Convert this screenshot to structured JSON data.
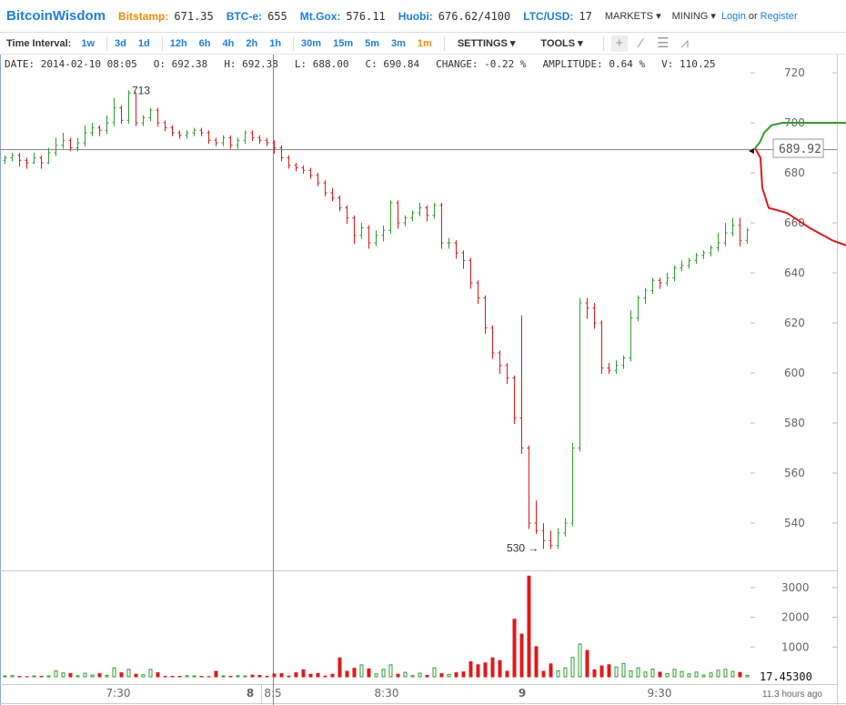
{
  "header": {
    "logo": "BitcoinWisdom",
    "tickers": [
      {
        "label": "Bitstamp:",
        "value": "671.35",
        "color": "#f28c00"
      },
      {
        "label": "BTC-e:",
        "value": "655",
        "color": "#1a7fe0"
      },
      {
        "label": "Mt.Gox:",
        "value": "576.11",
        "color": "#1a7fe0"
      },
      {
        "label": "Huobi:",
        "value": "676.62/4100",
        "color": "#1a7fe0"
      },
      {
        "label": "LTC/USD:",
        "value": "17",
        "color": "#1a7fe0"
      }
    ],
    "markets": "MARKETS",
    "mining": "MINING",
    "login": "Login",
    "or": "or",
    "register": "Register"
  },
  "toolbar": {
    "label": "Time Interval:",
    "intervals": [
      "1w",
      "3d",
      "1d",
      "12h",
      "6h",
      "4h",
      "2h",
      "1h",
      "30m",
      "15m",
      "5m",
      "3m",
      "1m"
    ],
    "active": "1m",
    "settings": "SETTINGS",
    "tools": "TOOLS",
    "tool_icons": [
      "crosshair-icon",
      "line-icon",
      "fib-icon",
      "fan-icon"
    ]
  },
  "info": {
    "date": "DATE: 2014-02-10 08:05",
    "open": "O: 692.38",
    "high": "H: 692.38",
    "low": "L: 688.00",
    "close": "C: 690.84",
    "change": "CHANGE: -0.22 %",
    "amplitude": "AMPLITUDE: 0.64 %",
    "volume": "V: 110.25"
  },
  "chart_data": {
    "type": "candlestick",
    "interval": "1m",
    "colors": {
      "up": "#2e9e2e",
      "down": "#e01818"
    },
    "price_ticks": [
      720,
      700,
      680,
      660,
      640,
      620,
      600,
      580,
      560,
      540
    ],
    "price_range": [
      520,
      725
    ],
    "volume_ticks": [
      3000,
      2000,
      1000
    ],
    "time_labels": [
      {
        "t": "7:30",
        "bold": false
      },
      {
        "t": "8",
        "bold": true
      },
      {
        "t": "8:5",
        "bold": false
      },
      {
        "t": "8:30",
        "bold": false
      },
      {
        "t": "9",
        "bold": true
      },
      {
        "t": "9:30",
        "bold": false
      }
    ],
    "max_label": "713",
    "min_label": "530",
    "current_price": "689.92",
    "current_volume": "17.45300",
    "ago": "11.3 hours ago",
    "candles": [
      [
        685,
        687,
        684,
        686,
        30
      ],
      [
        686,
        688,
        685,
        687,
        40
      ],
      [
        687,
        688,
        683,
        685,
        30
      ],
      [
        685,
        686,
        682,
        684,
        20
      ],
      [
        684,
        688,
        684,
        686,
        30
      ],
      [
        686,
        687,
        682,
        684,
        30
      ],
      [
        684,
        690,
        684,
        688,
        30
      ],
      [
        688,
        694,
        687,
        691,
        200
      ],
      [
        691,
        696,
        690,
        693,
        130
      ],
      [
        693,
        694,
        689,
        690,
        120
      ],
      [
        690,
        694,
        689,
        692,
        40
      ],
      [
        692,
        699,
        691,
        696,
        120
      ],
      [
        696,
        700,
        695,
        698,
        60
      ],
      [
        698,
        699,
        695,
        697,
        120
      ],
      [
        697,
        703,
        696,
        700,
        50
      ],
      [
        700,
        710,
        699,
        706,
        300
      ],
      [
        706,
        707,
        700,
        701,
        150
      ],
      [
        701,
        713,
        700,
        712,
        250
      ],
      [
        712,
        712,
        699,
        700,
        100
      ],
      [
        700,
        703,
        699,
        702,
        70
      ],
      [
        702,
        706,
        701,
        705,
        250
      ],
      [
        705,
        706,
        699,
        700,
        150
      ],
      [
        700,
        701,
        697,
        698,
        30
      ],
      [
        698,
        699,
        695,
        696,
        30
      ],
      [
        696,
        697,
        694,
        695,
        30
      ],
      [
        695,
        697,
        694,
        696,
        40
      ],
      [
        696,
        698,
        695,
        697,
        30
      ],
      [
        697,
        698,
        695,
        696,
        30
      ],
      [
        696,
        697,
        692,
        693,
        20
      ],
      [
        693,
        694,
        691,
        692,
        200
      ],
      [
        692,
        695,
        691,
        694,
        30
      ],
      [
        694,
        695,
        690,
        691,
        30
      ],
      [
        691,
        694,
        690,
        693,
        40
      ],
      [
        693,
        697,
        692,
        696,
        30
      ],
      [
        696,
        697,
        693,
        694,
        70
      ],
      [
        694,
        695,
        692,
        693,
        60
      ],
      [
        693,
        694,
        691,
        692,
        30
      ],
      [
        692,
        693,
        688,
        690,
        110
      ],
      [
        690,
        691,
        685,
        686,
        120
      ],
      [
        686,
        687,
        682,
        683,
        40
      ],
      [
        683,
        684,
        681,
        682,
        150
      ],
      [
        682,
        683,
        680,
        681,
        250
      ],
      [
        681,
        682,
        678,
        679,
        100
      ],
      [
        679,
        680,
        675,
        676,
        130
      ],
      [
        676,
        677,
        671,
        672,
        40
      ],
      [
        672,
        674,
        669,
        670,
        100
      ],
      [
        670,
        671,
        665,
        666,
        650
      ],
      [
        666,
        667,
        660,
        662,
        200
      ],
      [
        662,
        663,
        652,
        655,
        300
      ],
      [
        655,
        660,
        654,
        658,
        400
      ],
      [
        658,
        659,
        650,
        652,
        280
      ],
      [
        652,
        657,
        651,
        655,
        100
      ],
      [
        655,
        659,
        653,
        657,
        250
      ],
      [
        657,
        669,
        656,
        668,
        400
      ],
      [
        668,
        669,
        658,
        660,
        100
      ],
      [
        660,
        663,
        659,
        662,
        150
      ],
      [
        662,
        665,
        661,
        664,
        40
      ],
      [
        664,
        668,
        663,
        666,
        120
      ],
      [
        666,
        667,
        661,
        663,
        60
      ],
      [
        663,
        668,
        662,
        667,
        300
      ],
      [
        667,
        668,
        650,
        652,
        120
      ],
      [
        652,
        654,
        650,
        652,
        80
      ],
      [
        652,
        653,
        646,
        648,
        150
      ],
      [
        648,
        649,
        642,
        645,
        180
      ],
      [
        645,
        646,
        634,
        636,
        520
      ],
      [
        636,
        637,
        628,
        630,
        420
      ],
      [
        630,
        631,
        616,
        618,
        480
      ],
      [
        618,
        619,
        606,
        608,
        650
      ],
      [
        608,
        609,
        600,
        603,
        560
      ],
      [
        603,
        604,
        596,
        598,
        200
      ],
      [
        598,
        599,
        580,
        582,
        1950
      ],
      [
        582,
        623,
        568,
        570,
        1450
      ],
      [
        570,
        571,
        538,
        540,
        3400
      ],
      [
        540,
        549,
        536,
        537,
        1030
      ],
      [
        537,
        540,
        530,
        533,
        200
      ],
      [
        533,
        537,
        530,
        531,
        450
      ],
      [
        531,
        538,
        530,
        536,
        200
      ],
      [
        536,
        542,
        535,
        540,
        300
      ],
      [
        540,
        572,
        539,
        570,
        650
      ],
      [
        570,
        630,
        569,
        628,
        1100
      ],
      [
        628,
        630,
        622,
        626,
        900
      ],
      [
        626,
        628,
        618,
        620,
        250
      ],
      [
        620,
        621,
        600,
        602,
        380
      ],
      [
        602,
        604,
        600,
        601,
        420
      ],
      [
        601,
        605,
        600,
        603,
        330
      ],
      [
        603,
        607,
        602,
        606,
        450
      ],
      [
        606,
        625,
        605,
        622,
        200
      ],
      [
        622,
        631,
        621,
        630,
        300
      ],
      [
        630,
        634,
        628,
        633,
        160
      ],
      [
        633,
        638,
        632,
        637,
        260
      ],
      [
        637,
        638,
        634,
        636,
        170
      ],
      [
        636,
        640,
        635,
        638,
        110
      ],
      [
        638,
        643,
        637,
        642,
        250
      ],
      [
        642,
        645,
        641,
        643,
        180
      ],
      [
        643,
        646,
        642,
        645,
        100
      ],
      [
        645,
        648,
        644,
        647,
        160
      ],
      [
        647,
        649,
        646,
        648,
        60
      ],
      [
        648,
        651,
        647,
        650,
        130
      ],
      [
        650,
        656,
        649,
        652,
        220
      ],
      [
        652,
        660,
        651,
        656,
        250
      ],
      [
        656,
        662,
        655,
        659,
        180
      ],
      [
        659,
        662,
        651,
        653,
        160
      ],
      [
        653,
        658,
        652,
        657,
        50
      ]
    ],
    "depth": {
      "bids": [
        [
          689.92,
          0
        ],
        [
          692,
          0.05
        ],
        [
          696,
          0.1
        ],
        [
          699,
          0.18
        ],
        [
          700,
          0.3
        ],
        [
          700,
          1
        ]
      ],
      "asks": [
        [
          689.92,
          0
        ],
        [
          686,
          0.06
        ],
        [
          674,
          0.08
        ],
        [
          666,
          0.15
        ],
        [
          664,
          0.35
        ],
        [
          658,
          0.6
        ],
        [
          653,
          0.85
        ],
        [
          651,
          1
        ]
      ]
    }
  }
}
